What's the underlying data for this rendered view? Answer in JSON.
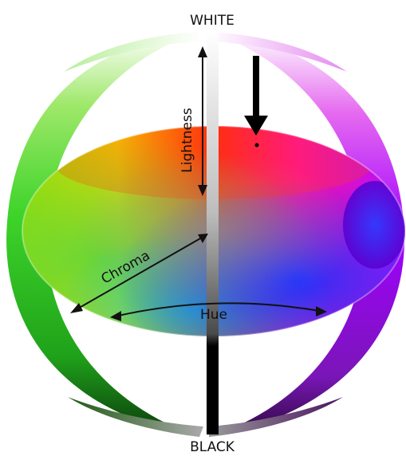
{
  "labels": {
    "top": "WHITE",
    "bottom": "BLACK",
    "lightness": "Lightness",
    "chroma": "Chroma",
    "hue": "Hue"
  },
  "colors": {
    "red": "#ff1a1a",
    "orange": "#ff9a00",
    "yellow": "#f5ea00",
    "green": "#4ec800",
    "cyan": "#00c8c0",
    "blue": "#1a2cff",
    "magenta": "#ff00d8",
    "arrow": "#000000"
  },
  "icons": {
    "indicator": "down-arrow-icon"
  }
}
